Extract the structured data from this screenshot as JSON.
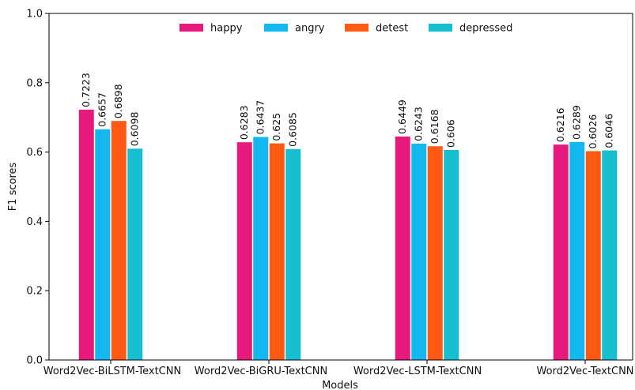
{
  "chart_data": {
    "type": "bar",
    "title": "",
    "xlabel": "Models",
    "ylabel": "F1 scores",
    "ylim": [
      0,
      1.0
    ],
    "yticks": [
      "0.0",
      "0.2",
      "0.4",
      "0.6",
      "0.8",
      "1.0"
    ],
    "grid": false,
    "legend_position": "top-center",
    "categories": [
      "Word2Vec-BiLSTM-TextCNN",
      "Word2Vec-BiGRU-TextCNN",
      "Word2Vec-LSTM-TextCNN",
      "Word2Vec-TextCNN"
    ],
    "series": [
      {
        "name": "happy",
        "color": "#E8197D",
        "values": [
          0.7223,
          0.6283,
          0.6449,
          0.6216
        ],
        "labels": [
          "0.7223",
          "0.6283",
          "0.6449",
          "0.6216"
        ]
      },
      {
        "name": "angry",
        "color": "#14B8F0",
        "values": [
          0.6657,
          0.6437,
          0.6243,
          0.6289
        ],
        "labels": [
          "0.6657",
          "0.6437",
          "0.6243",
          "0.6289"
        ]
      },
      {
        "name": "detest",
        "color": "#FF5A14",
        "values": [
          0.6898,
          0.625,
          0.6168,
          0.6026
        ],
        "labels": [
          "0.6898",
          "0.625",
          "0.6168",
          "0.6026"
        ]
      },
      {
        "name": "depressed",
        "color": "#17BECF",
        "values": [
          0.6098,
          0.6085,
          0.606,
          0.6046
        ],
        "labels": [
          "0.6098",
          "0.6085",
          "0.606",
          "0.6046"
        ]
      }
    ]
  }
}
